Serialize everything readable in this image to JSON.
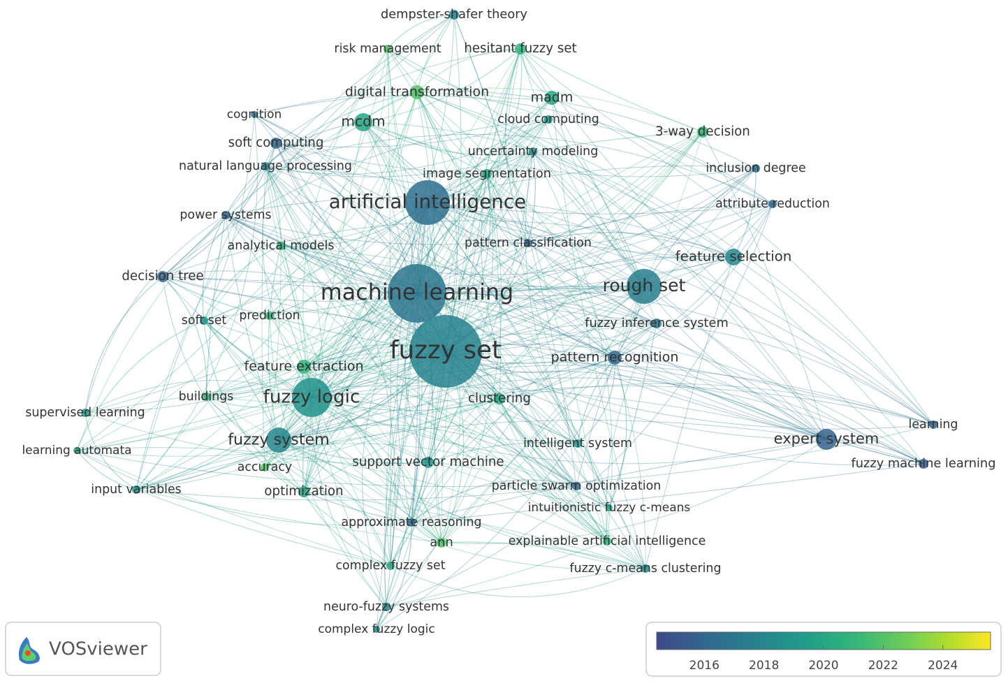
{
  "nodes": [
    {
      "label": "dempster-shafer theory",
      "year": 2018
    },
    {
      "label": "risk management",
      "year": 2022
    },
    {
      "label": "hesitant fuzzy set",
      "year": 2021
    },
    {
      "label": "digital transformation",
      "year": 2022
    },
    {
      "label": "madm",
      "year": 2020
    },
    {
      "label": "cloud computing",
      "year": 2019
    },
    {
      "label": "cognition",
      "year": 2017
    },
    {
      "label": "mcdm",
      "year": 2020
    },
    {
      "label": "3-way decision",
      "year": 2021
    },
    {
      "label": "soft computing",
      "year": 2016
    },
    {
      "label": "uncertainty modeling",
      "year": 2018
    },
    {
      "label": "natural language processing",
      "year": 2018
    },
    {
      "label": "inclusion degree",
      "year": 2017
    },
    {
      "label": "image segmentation",
      "year": 2020
    },
    {
      "label": "artificial intelligence",
      "year": 2016.5
    },
    {
      "label": "attribute reduction",
      "year": 2016
    },
    {
      "label": "power systems",
      "year": 2016
    },
    {
      "label": "pattern classification",
      "year": 2016
    },
    {
      "label": "analytical models",
      "year": 2021
    },
    {
      "label": "feature selection",
      "year": 2018
    },
    {
      "label": "decision tree",
      "year": 2016
    },
    {
      "label": "machine learning",
      "year": 2017
    },
    {
      "label": "rough set",
      "year": 2017.5
    },
    {
      "label": "soft set",
      "year": 2019
    },
    {
      "label": "prediction",
      "year": 2021
    },
    {
      "label": "fuzzy inference system",
      "year": 2017
    },
    {
      "label": "fuzzy set",
      "year": 2017.8
    },
    {
      "label": "pattern recognition",
      "year": 2016
    },
    {
      "label": "feature extraction",
      "year": 2021
    },
    {
      "label": "fuzzy logic",
      "year": 2018.7
    },
    {
      "label": "buildings",
      "year": 2021
    },
    {
      "label": "clustering",
      "year": 2020
    },
    {
      "label": "supervised learning",
      "year": 2019
    },
    {
      "label": "fuzzy system",
      "year": 2018
    },
    {
      "label": "learning",
      "year": 2016
    },
    {
      "label": "intelligent system",
      "year": 2019
    },
    {
      "label": "expert system",
      "year": 2015.8
    },
    {
      "label": "learning automata",
      "year": 2020
    },
    {
      "label": "support vector machine",
      "year": 2019
    },
    {
      "label": "fuzzy machine learning",
      "year": 2015.5
    },
    {
      "label": "accuracy",
      "year": 2022
    },
    {
      "label": "input variables",
      "year": 2019
    },
    {
      "label": "particle swarm optimization",
      "year": 2016
    },
    {
      "label": "optimization",
      "year": 2020
    },
    {
      "label": "intuitionistic fuzzy c-means",
      "year": 2020
    },
    {
      "label": "approximate reasoning",
      "year": 2016
    },
    {
      "label": "ann",
      "year": 2022
    },
    {
      "label": "explainable artificial intelligence",
      "year": 2021
    },
    {
      "label": "complex fuzzy set",
      "year": 2020
    },
    {
      "label": "fuzzy c-means clustering",
      "year": 2018
    },
    {
      "label": "neuro-fuzzy systems",
      "year": 2018
    },
    {
      "label": "complex fuzzy logic",
      "year": 2018
    }
  ],
  "color_scale": {
    "range": [
      2014.4,
      2025.6
    ],
    "ticks": [
      2016,
      2018,
      2020,
      2022,
      2024
    ]
  },
  "logo": "VOSviewer"
}
